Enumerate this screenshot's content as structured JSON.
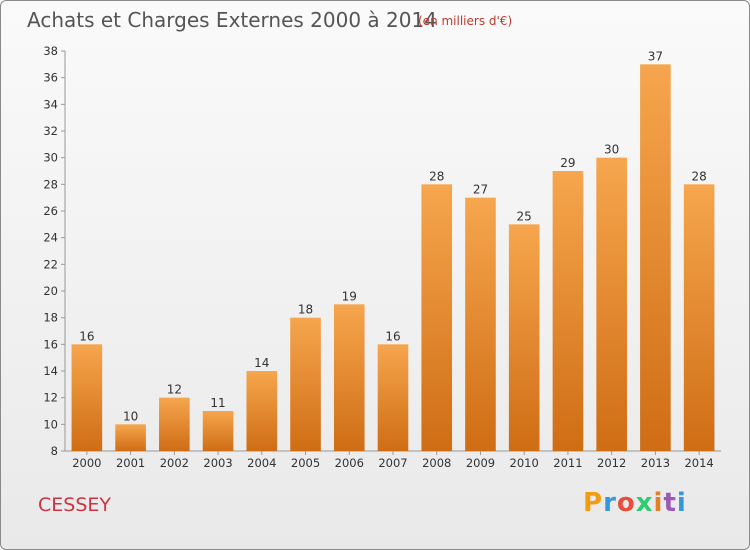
{
  "header": {
    "title": "Achats et Charges Externes 2000 à 2014",
    "subtitle": "(en milliers d'€)"
  },
  "footer": {
    "commune": "CESSEY",
    "logo_letters": [
      "P",
      "r",
      "o",
      "x",
      "i",
      "t",
      "i"
    ]
  },
  "colors": {
    "bar_top": "#f6a64e",
    "bar_bottom": "#cf6d14",
    "title": "#555555",
    "subtitle": "#c0392b",
    "commune": "#cc3344",
    "logo": [
      "#f39c12",
      "#3498db",
      "#e74c3c",
      "#2ecc71",
      "#e67e22",
      "#9b59b6",
      "#3498db"
    ]
  },
  "chart_data": {
    "type": "bar",
    "title": "Achats et Charges Externes 2000 à 2014",
    "subtitle": "(en milliers d'€)",
    "categories": [
      "2000",
      "2001",
      "2002",
      "2003",
      "2004",
      "2005",
      "2006",
      "2007",
      "2008",
      "2009",
      "2010",
      "2011",
      "2012",
      "2013",
      "2014"
    ],
    "values": [
      16,
      10,
      12,
      11,
      14,
      18,
      19,
      16,
      28,
      27,
      25,
      29,
      30,
      37,
      28
    ],
    "ylim": [
      8,
      38
    ],
    "yticks": [
      8,
      10,
      12,
      14,
      16,
      18,
      20,
      22,
      24,
      26,
      28,
      30,
      32,
      34,
      36,
      38
    ],
    "grid": false,
    "data_labels": true
  }
}
